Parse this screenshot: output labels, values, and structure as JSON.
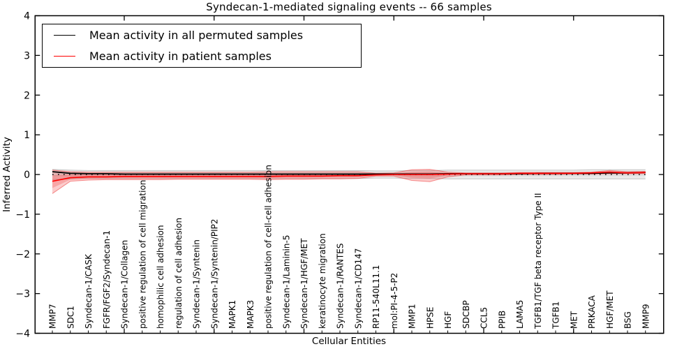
{
  "title": "Syndecan-1-mediated signaling events -- 66 samples",
  "axes": {
    "ylabel": "Inferred Activity",
    "xlabel": "Cellular Entities"
  },
  "chart_data": {
    "type": "line",
    "title": "Syndecan-1-mediated signaling events -- 66 samples",
    "xlabel": "Cellular Entities",
    "ylabel": "Inferred Activity",
    "ylim": [
      -4,
      4
    ],
    "yticks": [
      -4,
      -3,
      -2,
      -1,
      0,
      1,
      2,
      3,
      4
    ],
    "x_major_tick_positions": [
      5,
      10,
      15,
      20,
      25,
      30
    ],
    "grid": false,
    "legend_position": "upper left",
    "zero_line": 0,
    "categories": [
      "MMP7",
      "SDC1",
      "Syndecan-1/CASK",
      "FGFR/FGF2/Syndecan-1",
      "Syndecan-1/Collagen",
      "positive regulation of cell migration",
      "homophilic cell adhesion",
      "regulation of cell adhesion",
      "Syndecan-1/Syntenin",
      "Syndecan-1/Syntenin/PIP2",
      "MAPK1",
      "MAPK3",
      "positive regulation of cell-cell adhesion",
      "Syndecan-1/Laminin-5",
      "Syndecan-1/HGF/MET",
      "keratinocyte migration",
      "Syndecan-1/RANTES",
      "Syndecan-1/CD147",
      "RP11-540L11.1",
      "mol:PI-4-5-P2",
      "MMP1",
      "HPSE",
      "HGF",
      "SDCBP",
      "CCL5",
      "PPIB",
      "LAMA5",
      "TGFB1/TGF beta receptor Type II",
      "TGFB1",
      "MET",
      "PRKACA",
      "HGF/MET",
      "BSG",
      "MMP9"
    ],
    "series": [
      {
        "name": "Mean activity in all permuted samples",
        "color": "#000000",
        "style": "solid",
        "values": [
          0.07,
          0.03,
          0.02,
          0.02,
          0.01,
          0.01,
          0.01,
          0.01,
          0.01,
          0.01,
          0.01,
          0.01,
          0.01,
          0.01,
          0.01,
          0.01,
          0.01,
          0.01,
          0.01,
          0.01,
          0.01,
          0.01,
          0.02,
          0.02,
          0.02,
          0.02,
          0.02,
          0.03,
          0.03,
          0.03,
          0.03,
          0.04,
          0.04,
          0.05
        ]
      },
      {
        "name": "Mean activity in patient samples",
        "color": "#ff0000",
        "style": "solid",
        "values": [
          -0.17,
          -0.08,
          -0.06,
          -0.06,
          -0.05,
          -0.05,
          -0.05,
          -0.05,
          -0.05,
          -0.05,
          -0.05,
          -0.05,
          -0.05,
          -0.04,
          -0.04,
          -0.04,
          -0.03,
          -0.03,
          -0.01,
          0.0,
          0.0,
          0.0,
          0.01,
          0.02,
          0.02,
          0.02,
          0.03,
          0.03,
          0.03,
          0.03,
          0.04,
          0.06,
          0.04,
          0.05
        ]
      }
    ],
    "bands": [
      {
        "name": "Permuted samples activity range",
        "color": "#999999",
        "center_series": 0,
        "low": [
          -0.13,
          -0.11,
          -0.1,
          -0.1,
          -0.1,
          -0.1,
          -0.1,
          -0.1,
          -0.1,
          -0.1,
          -0.1,
          -0.1,
          -0.1,
          -0.1,
          -0.1,
          -0.1,
          -0.1,
          -0.1,
          -0.09,
          -0.09,
          -0.1,
          -0.1,
          -0.11,
          -0.11,
          -0.11,
          -0.11,
          -0.11,
          -0.11,
          -0.11,
          -0.11,
          -0.11,
          -0.11,
          -0.11,
          -0.11
        ],
        "high": [
          0.13,
          0.11,
          0.1,
          0.1,
          0.1,
          0.1,
          0.1,
          0.1,
          0.1,
          0.1,
          0.1,
          0.1,
          0.1,
          0.1,
          0.1,
          0.1,
          0.1,
          0.1,
          0.09,
          0.09,
          0.1,
          0.1,
          0.11,
          0.11,
          0.11,
          0.11,
          0.11,
          0.11,
          0.11,
          0.11,
          0.12,
          0.12,
          0.12,
          0.12
        ]
      },
      {
        "name": "Patient samples activity range",
        "color": "#ee3a3a",
        "center_series": 1,
        "low": [
          -0.48,
          -0.17,
          -0.14,
          -0.13,
          -0.13,
          -0.13,
          -0.13,
          -0.12,
          -0.12,
          -0.12,
          -0.12,
          -0.12,
          -0.13,
          -0.12,
          -0.12,
          -0.11,
          -0.11,
          -0.1,
          -0.04,
          -0.04,
          -0.15,
          -0.18,
          -0.06,
          -0.01,
          -0.01,
          -0.01,
          0.0,
          0.0,
          0.0,
          0.01,
          0.01,
          0.02,
          0.02,
          0.02
        ],
        "high": [
          0.11,
          0.07,
          0.06,
          0.06,
          0.06,
          0.06,
          0.06,
          0.06,
          0.06,
          0.06,
          0.06,
          0.06,
          0.07,
          0.07,
          0.07,
          0.07,
          0.07,
          0.07,
          0.03,
          0.04,
          0.12,
          0.13,
          0.06,
          0.04,
          0.04,
          0.04,
          0.05,
          0.05,
          0.05,
          0.05,
          0.06,
          0.1,
          0.07,
          0.08
        ]
      }
    ]
  }
}
